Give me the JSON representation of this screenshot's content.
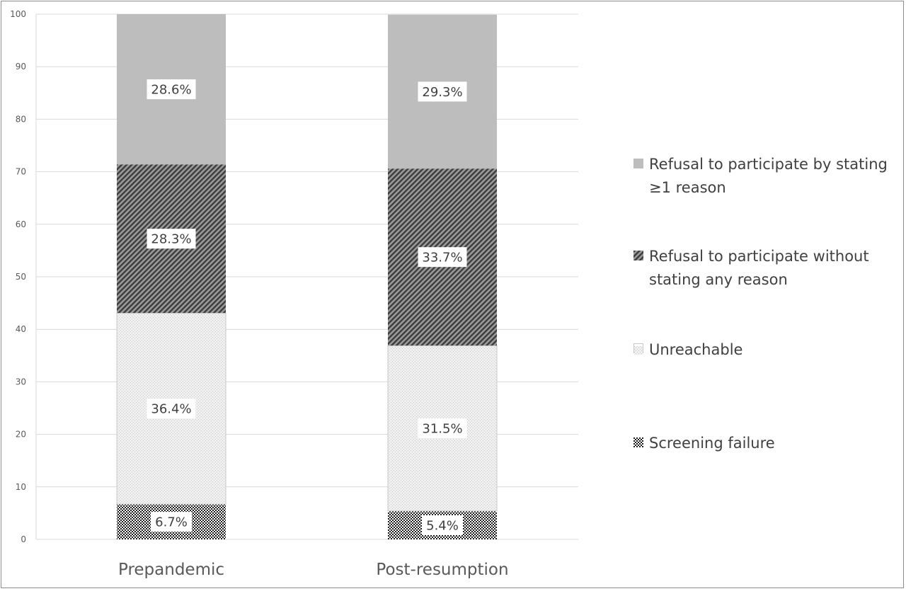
{
  "chart_data": {
    "type": "bar",
    "stacked": true,
    "categories": [
      "Prepandemic",
      "Post-resumption"
    ],
    "series": [
      {
        "name": "Screening failure",
        "values": [
          6.7,
          5.4
        ],
        "labels": [
          "6.7%",
          "5.4%"
        ],
        "pattern": "dots-dense"
      },
      {
        "name": "Unreachable",
        "values": [
          36.4,
          31.5
        ],
        "labels": [
          "36.4%",
          "31.5%"
        ],
        "pattern": "dots-light"
      },
      {
        "name": "Refusal to participate without stating any reason",
        "values": [
          28.3,
          33.7
        ],
        "labels": [
          "28.3%",
          "33.7%"
        ],
        "pattern": "diagonal-dark"
      },
      {
        "name": "Refusal to participate by stating ≥1 reason",
        "values": [
          28.6,
          29.3
        ],
        "labels": [
          "28.6%",
          "29.3%"
        ],
        "pattern": "solid-gray"
      }
    ],
    "ylim": [
      0,
      100
    ],
    "yticks": [
      0,
      10,
      20,
      30,
      40,
      50,
      60,
      70,
      80,
      90,
      100
    ],
    "grid": true,
    "legend_position": "right",
    "legend_order": [
      "Refusal to participate by stating ≥1 reason",
      "Refusal to participate without stating any reason",
      "Unreachable",
      "Screening failure"
    ]
  }
}
